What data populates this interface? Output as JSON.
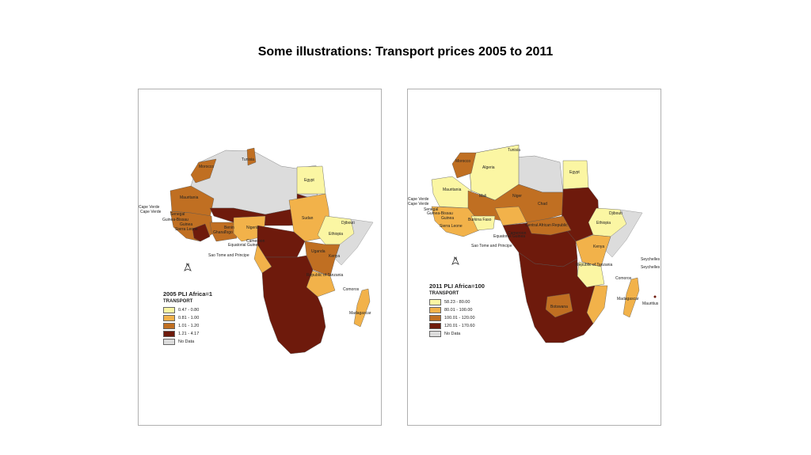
{
  "slide": {
    "title": "Some illustrations: Transport prices 2005 to 2011"
  },
  "colors": {
    "c1": "#fbf6a3",
    "c2": "#f2b24a",
    "c3": "#c06f22",
    "c4": "#6e1a0c",
    "nodata": "#dcdcdc"
  },
  "map_2005": {
    "legend_title": "2005 PLI Africa=1",
    "legend_subtitle": "TRANSPORT",
    "legend": [
      {
        "label": "0.47 - 0.80",
        "color": "#fbf6a3"
      },
      {
        "label": "0.81 - 1.00",
        "color": "#f2b24a"
      },
      {
        "label": "1.01 - 1.20",
        "color": "#c06f22"
      },
      {
        "label": "1.21 - 4.17",
        "color": "#6e1a0c"
      },
      {
        "label": "No Data",
        "color": "#dcdcdc"
      }
    ],
    "north": "N",
    "labels": {
      "morocco": "Morocco",
      "tunisia": "Tunisia",
      "egypt": "Egypt",
      "mauritania": "Mauritania",
      "cape_verde_1": "Cape Verde",
      "cape_verde_2": "Cape Verde",
      "senegal": "Senegal",
      "guinea_bissau": "Guinea-Bissau",
      "guinea": "Guinea",
      "sierra_leone": "Sierra Leone",
      "ghana": "Ghana",
      "benin": "Benin",
      "togo": "Togo",
      "nigeria": "Nigeria",
      "cameroon": "Cameroon",
      "equatorial_guinea": "Equatorial Guinea",
      "sao_tome": "Sao Tome and Principe",
      "sudan": "Sudan",
      "djibouti": "Djibouti",
      "ethiopia": "Ethiopia",
      "uganda": "Uganda",
      "kenya": "Kenya",
      "tanzania": "Republic of Tanzania",
      "comoros": "Comoros",
      "madagascar": "Madagascar"
    }
  },
  "map_2011": {
    "legend_title": "2011 PLI Africa=100",
    "legend_subtitle": "TRANSPORT",
    "legend": [
      {
        "label": "58.23 - 80.00",
        "color": "#fbf6a3"
      },
      {
        "label": "80.01 - 100.00",
        "color": "#f2b24a"
      },
      {
        "label": "100.01 - 120.00",
        "color": "#c06f22"
      },
      {
        "label": "120.01 - 170.60",
        "color": "#6e1a0c"
      },
      {
        "label": "No Data",
        "color": "#dcdcdc"
      }
    ],
    "north": "N",
    "labels": {
      "morocco": "Morocco",
      "tunisia": "Tunisia",
      "algeria": "Algeria",
      "egypt": "Egypt",
      "mauritania": "Mauritania",
      "mali": "Mali",
      "niger": "Niger",
      "chad": "Chad",
      "cape_verde_1": "Cape Verde",
      "cape_verde_2": "Cape Verde",
      "senegal": "Senegal",
      "guinea_bissau": "Guinea-Bissau",
      "guinea": "Guinea",
      "burkina_faso": "Burkina Faso",
      "sierra_leone": "Sierra Leone",
      "car": "Central African Republic",
      "cameroon": "Cameroon",
      "equatorial_guinea": "Equatorial Guinea",
      "sao_tome": "Sao Tome and Principe",
      "djibouti": "Djibouti",
      "ethiopia": "Ethiopia",
      "kenya": "Kenya",
      "tanzania": "Republic of Tanzania",
      "seychelles_1": "Seychelles",
      "seychelles_2": "Seychelles",
      "comoros": "Comoros",
      "madagascar": "Madagascar",
      "mauritius": "Mauritius",
      "botswana": "Botswana"
    }
  }
}
